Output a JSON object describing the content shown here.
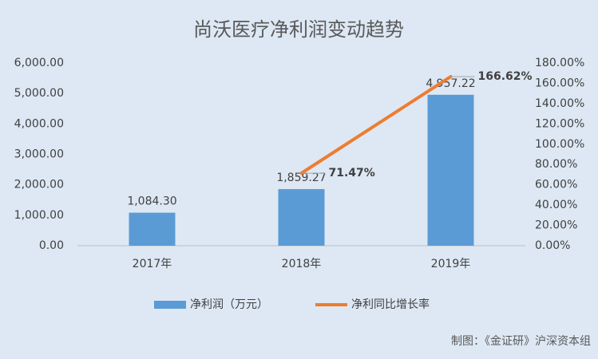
{
  "chart_data": {
    "type": "bar",
    "title": "尚沃医疗净利润变动趋势",
    "categories": [
      "2017年",
      "2018年",
      "2019年"
    ],
    "series": [
      {
        "name": "净利润（万元）",
        "type": "bar",
        "color": "#5b9bd5",
        "values": [
          1084.3,
          1859.27,
          4957.22
        ],
        "value_labels": [
          "1,084.30",
          "1,859.27",
          "4,957.22"
        ]
      },
      {
        "name": "净利同比增长率",
        "type": "line",
        "axis": "y2",
        "color": "#ed7d31",
        "values": [
          null,
          71.47,
          166.62
        ],
        "value_labels": [
          null,
          "71.47%",
          "166.62%"
        ]
      }
    ],
    "ylim": [
      0,
      6000
    ],
    "yticks": [
      {
        "value": 0,
        "label": "0.00"
      },
      {
        "value": 1000,
        "label": "1,000.00"
      },
      {
        "value": 2000,
        "label": "2,000.00"
      },
      {
        "value": 3000,
        "label": "3,000.00"
      },
      {
        "value": 4000,
        "label": "4,000.00"
      },
      {
        "value": 5000,
        "label": "5,000.00"
      },
      {
        "value": 6000,
        "label": "6,000.00"
      }
    ],
    "y2lim": [
      0,
      180
    ],
    "y2ticks": [
      {
        "value": 0,
        "label": "0.00%"
      },
      {
        "value": 20,
        "label": "20.00%"
      },
      {
        "value": 40,
        "label": "40.00%"
      },
      {
        "value": 60,
        "label": "60.00%"
      },
      {
        "value": 80,
        "label": "80.00%"
      },
      {
        "value": 100,
        "label": "100.00%"
      },
      {
        "value": 120,
        "label": "120.00%"
      },
      {
        "value": 140,
        "label": "140.00%"
      },
      {
        "value": 160,
        "label": "160.00%"
      },
      {
        "value": 180,
        "label": "180.00%"
      }
    ],
    "grid": false,
    "legend": "bottom",
    "note": "制图：《金证研》沪深资本组"
  }
}
